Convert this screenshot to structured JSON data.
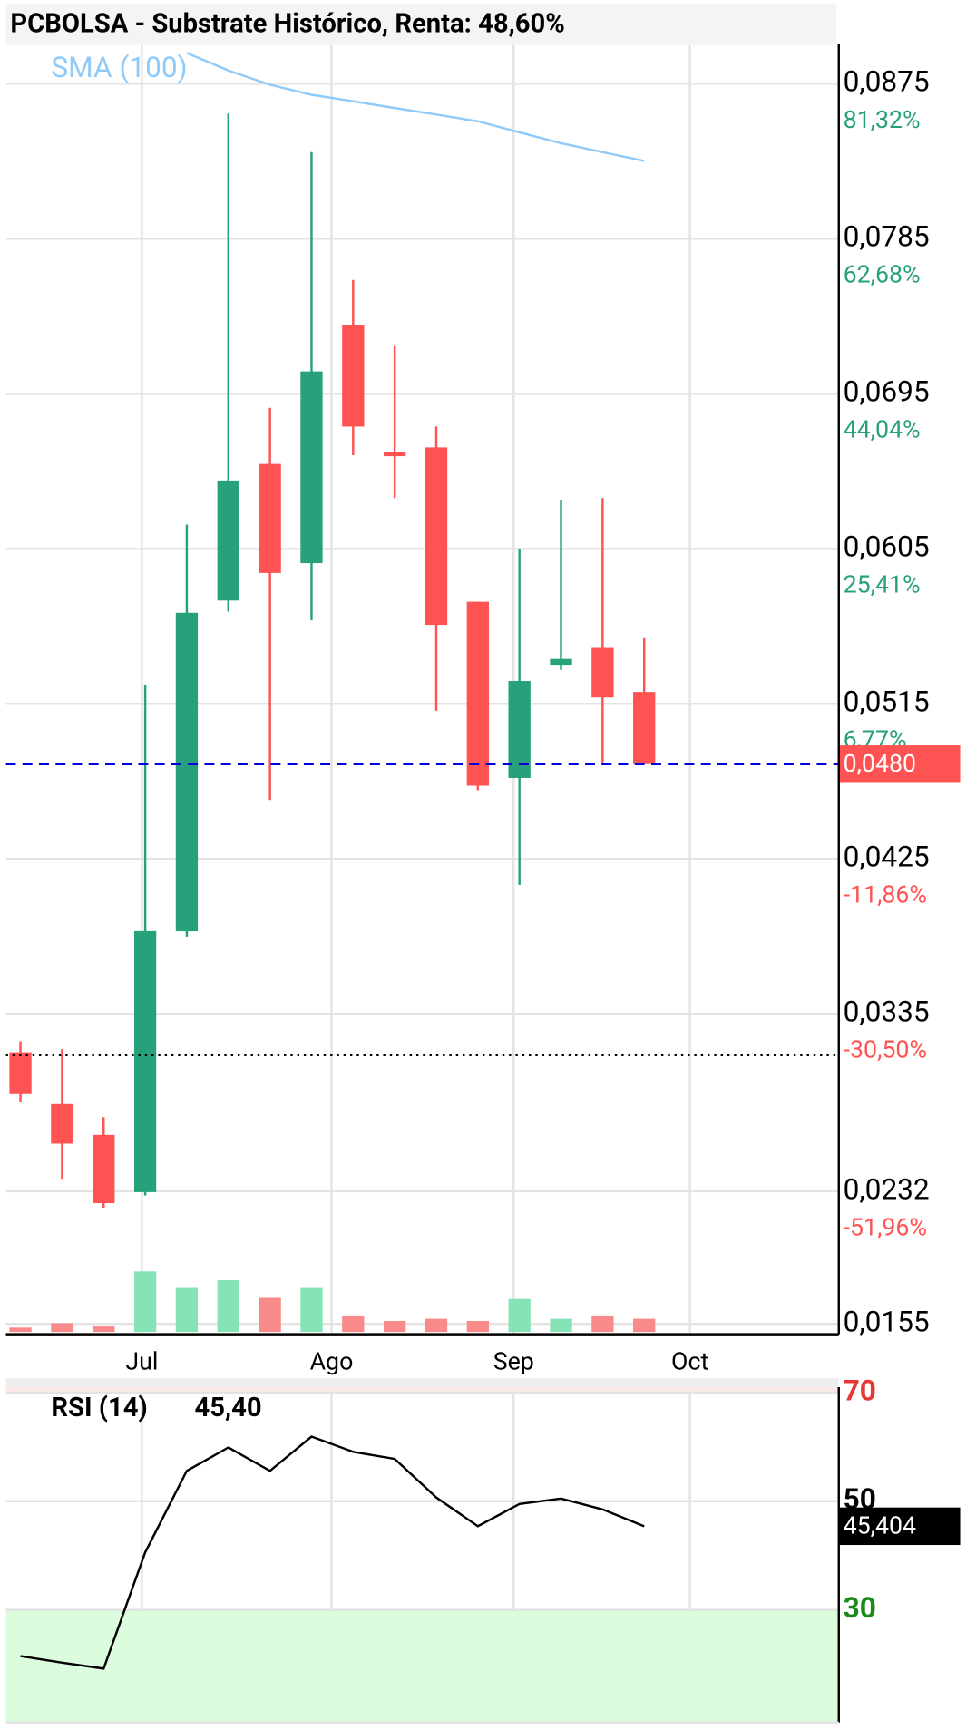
{
  "chart_data": [
    {
      "type": "candlestick",
      "title": "PCBOLSA - Substrate Histórico, Renta: 48,60%",
      "x": [
        0,
        1,
        2,
        3,
        4,
        5,
        6,
        7,
        8,
        9,
        10,
        11,
        12,
        13,
        14,
        15
      ],
      "xlim": [
        -0.35,
        19.68
      ],
      "xticks": [
        {
          "value": 2.92,
          "label": "Jul"
        },
        {
          "value": 7.48,
          "label": "Ago"
        },
        {
          "value": 11.86,
          "label": "Sep"
        },
        {
          "value": 16.1,
          "label": "Oct"
        }
      ],
      "ylim": [
        0.0149,
        0.0898
      ],
      "yticks": [
        {
          "value": 0.0875,
          "label": "0,0875",
          "sublabel": "81,32%"
        },
        {
          "value": 0.0785,
          "label": "0,0785",
          "sublabel": "62,68%"
        },
        {
          "value": 0.0695,
          "label": "0,0695",
          "sublabel": "44,04%"
        },
        {
          "value": 0.0605,
          "label": "0,0605",
          "sublabel": "25,41%"
        },
        {
          "value": 0.0515,
          "label": "0,0515",
          "sublabel": "6,77%"
        },
        {
          "value": 0.0425,
          "label": "0,0425",
          "sublabel": "-11,86%"
        },
        {
          "value": 0.0335,
          "label": "0,0335",
          "sublabel": "-30,50%"
        },
        {
          "value": 0.0232,
          "label": "0,0232",
          "sublabel": "-51,96%"
        },
        {
          "value": 0.0155,
          "label": "0,0155"
        }
      ],
      "open": [
        0.03127,
        0.02826,
        0.02647,
        0.02315,
        0.0383,
        0.0575,
        0.06543,
        0.05967,
        0.07349,
        0.06613,
        0.06639,
        0.05743,
        0.0472,
        0.05372,
        0.05475,
        0.05219
      ],
      "high": [
        0.03191,
        0.03146,
        0.0275,
        0.05257,
        0.06191,
        0.08577,
        0.06869,
        0.08353,
        0.07611,
        0.07227,
        0.0676,
        0.05743,
        0.0605,
        0.06332,
        0.06345,
        0.05532
      ],
      "low": [
        0.02839,
        0.02391,
        0.02225,
        0.02295,
        0.03799,
        0.05686,
        0.04592,
        0.05635,
        0.06594,
        0.06345,
        0.0511,
        0.04649,
        0.04099,
        0.05347,
        0.04797,
        0.048
      ],
      "close": [
        0.02884,
        0.02596,
        0.02251,
        0.03831,
        0.05679,
        0.06447,
        0.0591,
        0.0708,
        0.0676,
        0.06588,
        0.05609,
        0.04675,
        0.05283,
        0.05411,
        0.05187,
        0.048
      ],
      "up_color": "#26a17b",
      "down_color": "#ff5252",
      "sma": {
        "name": "SMA (100)",
        "color": "#90caf9",
        "values": [
          null,
          null,
          null,
          null,
          0.08929,
          0.08827,
          0.08744,
          0.08686,
          0.08648,
          0.08609,
          0.08571,
          0.08532,
          0.08468,
          0.08405,
          0.08353,
          0.08302
        ]
      },
      "volume": {
        "ylim": [
          0,
          100
        ],
        "up_color": "#86e3b5",
        "down_color": "#f88a8a",
        "values": [
          4,
          8,
          5,
          55,
          40,
          47,
          31,
          40,
          15,
          10,
          12,
          10,
          30,
          12,
          15,
          12
        ]
      },
      "last_price": {
        "value": 0.048,
        "label": "0,0480",
        "color": "#0000dd"
      },
      "reference_line": 0.0311,
      "grid": true
    },
    {
      "type": "line",
      "title": "RSI (14)",
      "last_label": "45,40",
      "x": [
        0,
        1,
        2,
        3,
        4,
        5,
        6,
        7,
        8,
        9,
        10,
        11,
        12,
        13,
        14,
        15
      ],
      "xlim": [
        -0.35,
        19.68
      ],
      "ylim": [
        9.3,
        71
      ],
      "yticks": [
        70,
        50,
        30
      ],
      "ytick_colors": [
        "#e53935",
        "#000000",
        "#1b8a1b"
      ],
      "series": [
        {
          "name": "RSI",
          "color": "#000000",
          "values": [
            21.5,
            20.3,
            19.2,
            40.6,
            55.6,
            59.9,
            55.6,
            61.9,
            59.1,
            57.8,
            50.7,
            45.4,
            49.5,
            50.5,
            48.5,
            45.404
          ],
          "last_label": "45,404"
        }
      ],
      "grid": true
    }
  ]
}
